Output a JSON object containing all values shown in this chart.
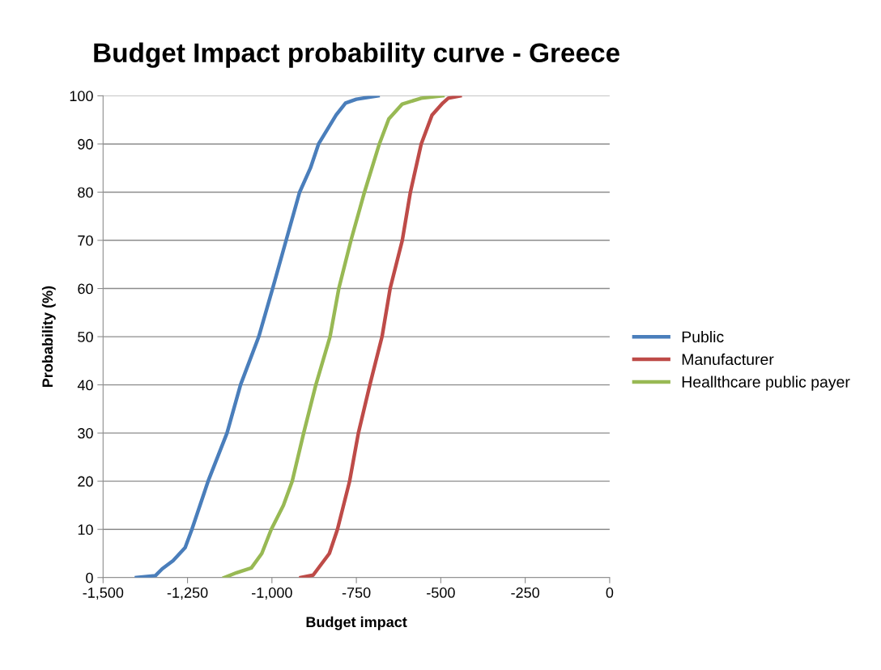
{
  "chart_data": {
    "type": "line",
    "title": "Budget Impact probability curve - Greece",
    "xlabel": "Budget impact",
    "ylabel": "Probability (%)",
    "xlim": [
      -1500,
      0
    ],
    "xticks": [
      {
        "value": -1500,
        "label": "-1,500"
      },
      {
        "value": -1250,
        "label": "-1,250"
      },
      {
        "value": -1000,
        "label": "-1,000"
      },
      {
        "value": -750,
        "label": "-750"
      },
      {
        "value": -500,
        "label": "-500"
      },
      {
        "value": -250,
        "label": "-250"
      },
      0
    ],
    "ylim": [
      0,
      100
    ],
    "yticks": [
      0,
      10,
      20,
      30,
      40,
      50,
      60,
      70,
      80,
      90,
      100
    ],
    "grid": "y",
    "legend": "right",
    "marker": "none",
    "line_style": "solid",
    "series": [
      {
        "name": "Public",
        "color": "#4a7ebb",
        "x": [
          -1401,
          -1345,
          -1325,
          -1293,
          -1257,
          -1237,
          -1189,
          -1133,
          -1093,
          -1039,
          -998,
          -958,
          -918,
          -886,
          -862,
          -810,
          -782,
          -750,
          -686
        ],
        "values": [
          0,
          0.4,
          1.8,
          3.5,
          6.2,
          10,
          20,
          30,
          40,
          50,
          60,
          70,
          80,
          85,
          90,
          96,
          98.5,
          99.3,
          100
        ]
      },
      {
        "name": "Manufacturer",
        "color": "#be4b48",
        "x": [
          -914,
          -878,
          -830,
          -806,
          -770,
          -744,
          -710,
          -674,
          -650,
          -614,
          -590,
          -558,
          -526,
          -494,
          -478,
          -443
        ],
        "values": [
          0,
          0.5,
          5,
          10,
          20,
          30,
          40,
          50,
          60,
          70,
          80,
          90,
          96,
          98.5,
          99.5,
          100
        ]
      },
      {
        "name": "Heallthcare public payer",
        "color": "#98b954",
        "x": [
          -1141,
          -1105,
          -1061,
          -1030,
          -1002,
          -966,
          -940,
          -906,
          -870,
          -828,
          -802,
          -766,
          -726,
          -682,
          -654,
          -614,
          -558,
          -494
        ],
        "values": [
          0,
          1,
          2,
          5,
          10,
          15,
          20,
          30,
          40,
          50,
          60,
          70,
          80,
          90,
          95.2,
          98.3,
          99.5,
          100
        ]
      }
    ]
  }
}
